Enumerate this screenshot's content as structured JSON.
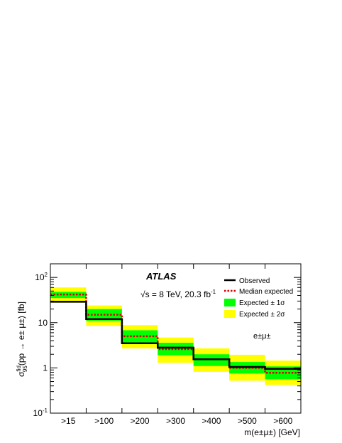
{
  "chart_data": {
    "type": "line",
    "log_y": true,
    "ylim": [
      0.1,
      200
    ],
    "categories": [
      ">15",
      ">100",
      ">200",
      ">300",
      ">400",
      ">500",
      ">600"
    ],
    "series": [
      {
        "name": "Observed",
        "values": [
          29,
          12,
          3.5,
          2.8,
          1.55,
          1.05,
          0.95
        ]
      },
      {
        "name": "Median expected",
        "values": [
          42,
          15,
          5.0,
          2.6,
          1.55,
          1.0,
          0.78
        ]
      },
      {
        "name": "Expected ± 1σ",
        "low": [
          35,
          11,
          3.6,
          1.9,
          1.1,
          0.75,
          0.56
        ],
        "high": [
          48,
          20,
          6.8,
          3.6,
          2.0,
          1.35,
          1.08
        ]
      },
      {
        "name": "Expected ± 2σ",
        "low": [
          30,
          8.5,
          2.7,
          1.3,
          0.82,
          0.52,
          0.42
        ],
        "high": [
          60,
          24,
          8.8,
          4.7,
          2.7,
          1.95,
          1.45
        ]
      }
    ],
    "y_ticks": [
      {
        "value": 0.1,
        "base": "10",
        "exp": "-1"
      },
      {
        "value": 1,
        "base": "1",
        "exp": ""
      },
      {
        "value": 10,
        "base": "10",
        "exp": ""
      },
      {
        "value": 100,
        "base": "10",
        "exp": "2"
      }
    ],
    "colors": {
      "observed": "#000000",
      "median": "#dd0000",
      "band1": "#00ff00",
      "band2": "#ffff00"
    },
    "legend_position": "top-right",
    "grid": false
  },
  "text": {
    "atlas": "ATLAS",
    "energy_pre": "√s = 8 TeV, 20.3 fb",
    "energy_sup": "-1",
    "channel": "e±μ±",
    "xlabel": "m(e±μ±) [GeV]",
    "ylabel_sigma": "σ",
    "ylabel_sup": "fid",
    "ylabel_sub": "95",
    "ylabel_rest": "(pp → e± μ±) [fb]"
  },
  "legend": {
    "observed": "Observed",
    "median": "Median expected",
    "band1": "Expected ± 1σ",
    "band2": "Expected ± 2σ"
  }
}
